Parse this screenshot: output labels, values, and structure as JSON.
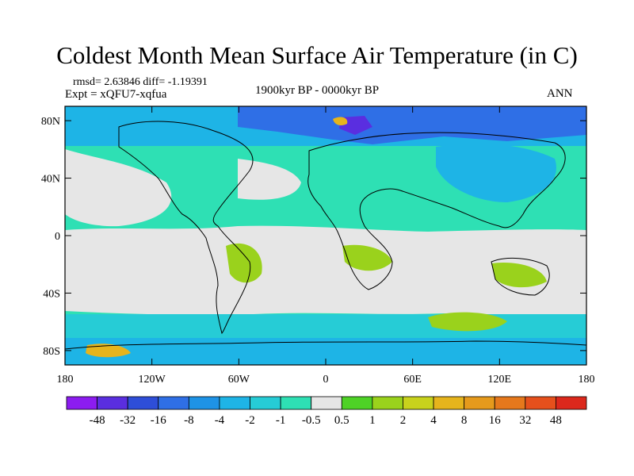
{
  "title": "Coldest Month Mean Surface Air Temperature (in C)",
  "stats": "rmsd= 2.63846 diff= -1.19391",
  "experiment": "Expt = xQFU7-xqfua",
  "period": "1900kyr BP - 0000kyr BP",
  "season": "ANN",
  "axes": {
    "x_ticks": [
      {
        "value": -180,
        "label": "180"
      },
      {
        "value": -120,
        "label": "120W"
      },
      {
        "value": -60,
        "label": "60W"
      },
      {
        "value": 0,
        "label": "0"
      },
      {
        "value": 60,
        "label": "60E"
      },
      {
        "value": 120,
        "label": "120E"
      },
      {
        "value": 180,
        "label": "180"
      }
    ],
    "y_ticks": [
      {
        "value": 80,
        "label": "80N"
      },
      {
        "value": 40,
        "label": "40N"
      },
      {
        "value": 0,
        "label": "0"
      },
      {
        "value": -40,
        "label": "40S"
      },
      {
        "value": -80,
        "label": "80S"
      }
    ],
    "lon_range": [
      -180,
      180
    ],
    "lat_range": [
      -90,
      90
    ]
  },
  "colorbar": {
    "colors": [
      "#8c1cf0",
      "#5a2ee0",
      "#2e4ed8",
      "#2f6fe6",
      "#1e93e6",
      "#1eb4e6",
      "#26ccd6",
      "#2ee0b4",
      "#e6e6e6",
      "#4ed226",
      "#9ad21c",
      "#c8d21c",
      "#e6b41c",
      "#e69a1c",
      "#e6781c",
      "#e6501c",
      "#dc281c"
    ],
    "labels": [
      "-48",
      "-32",
      "-16",
      "-8",
      "-4",
      "-2",
      "-1",
      "-0.5",
      "0.5",
      "1",
      "2",
      "4",
      "8",
      "16",
      "32",
      "48"
    ]
  }
}
